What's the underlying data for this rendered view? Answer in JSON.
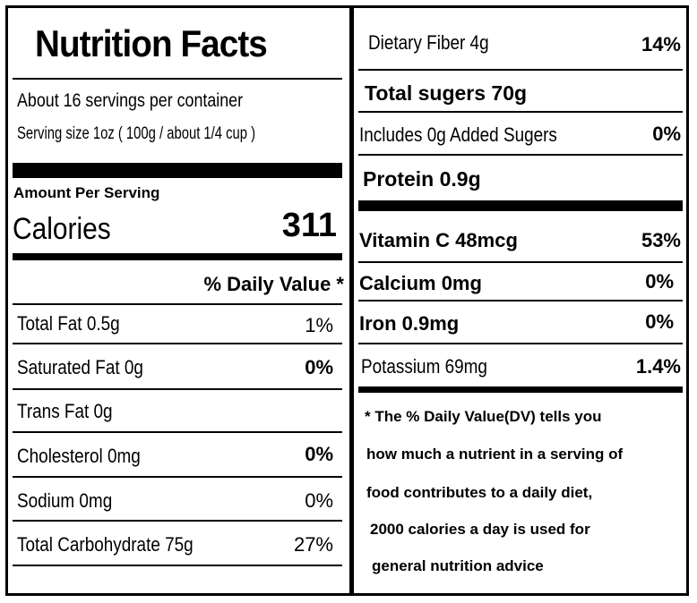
{
  "title": "Nutrition Facts",
  "servings_per_container": "About 16 servings per container",
  "serving_size": "Serving size 1oz ( 100g / about 1/4 cup )",
  "amount_per_serving": "Amount Per Serving",
  "calories": {
    "label": "Calories",
    "value": "311"
  },
  "daily_value_header": "% Daily Value *",
  "left_rows": [
    {
      "label": "Total Fat 0.5g",
      "dv": "1%"
    },
    {
      "label": "Saturated Fat 0g",
      "dv": "0%"
    },
    {
      "label": "Trans Fat 0g",
      "dv": ""
    },
    {
      "label": "Cholesterol  0mg",
      "dv": "0%"
    },
    {
      "label": "Sodium 0mg",
      "dv": "0%"
    },
    {
      "label": "Total Carbohydrate 75g",
      "dv": "27%"
    }
  ],
  "right_rows": [
    {
      "label": "Dietary Fiber 4g",
      "dv": "14%"
    },
    {
      "label": "Total sugers 70g",
      "dv": ""
    },
    {
      "label": "Includes 0g Added Sugers",
      "dv": "0%"
    },
    {
      "label": "Protein 0.9g",
      "dv": ""
    },
    {
      "label": "Vitamin C 48mcg",
      "dv": "53%"
    },
    {
      "label": "Calcium 0mg",
      "dv": "0%"
    },
    {
      "label": "Iron 0.9mg",
      "dv": "0%"
    },
    {
      "label": "Potassium 69mg",
      "dv": "1.4%"
    }
  ],
  "footnote": [
    "* The % Daily Value(DV)  tells you",
    "how much a nutrient in a serving of",
    "food contributes to a daily diet,",
    "2000 calories a day is used for",
    "general nutrition advice"
  ]
}
